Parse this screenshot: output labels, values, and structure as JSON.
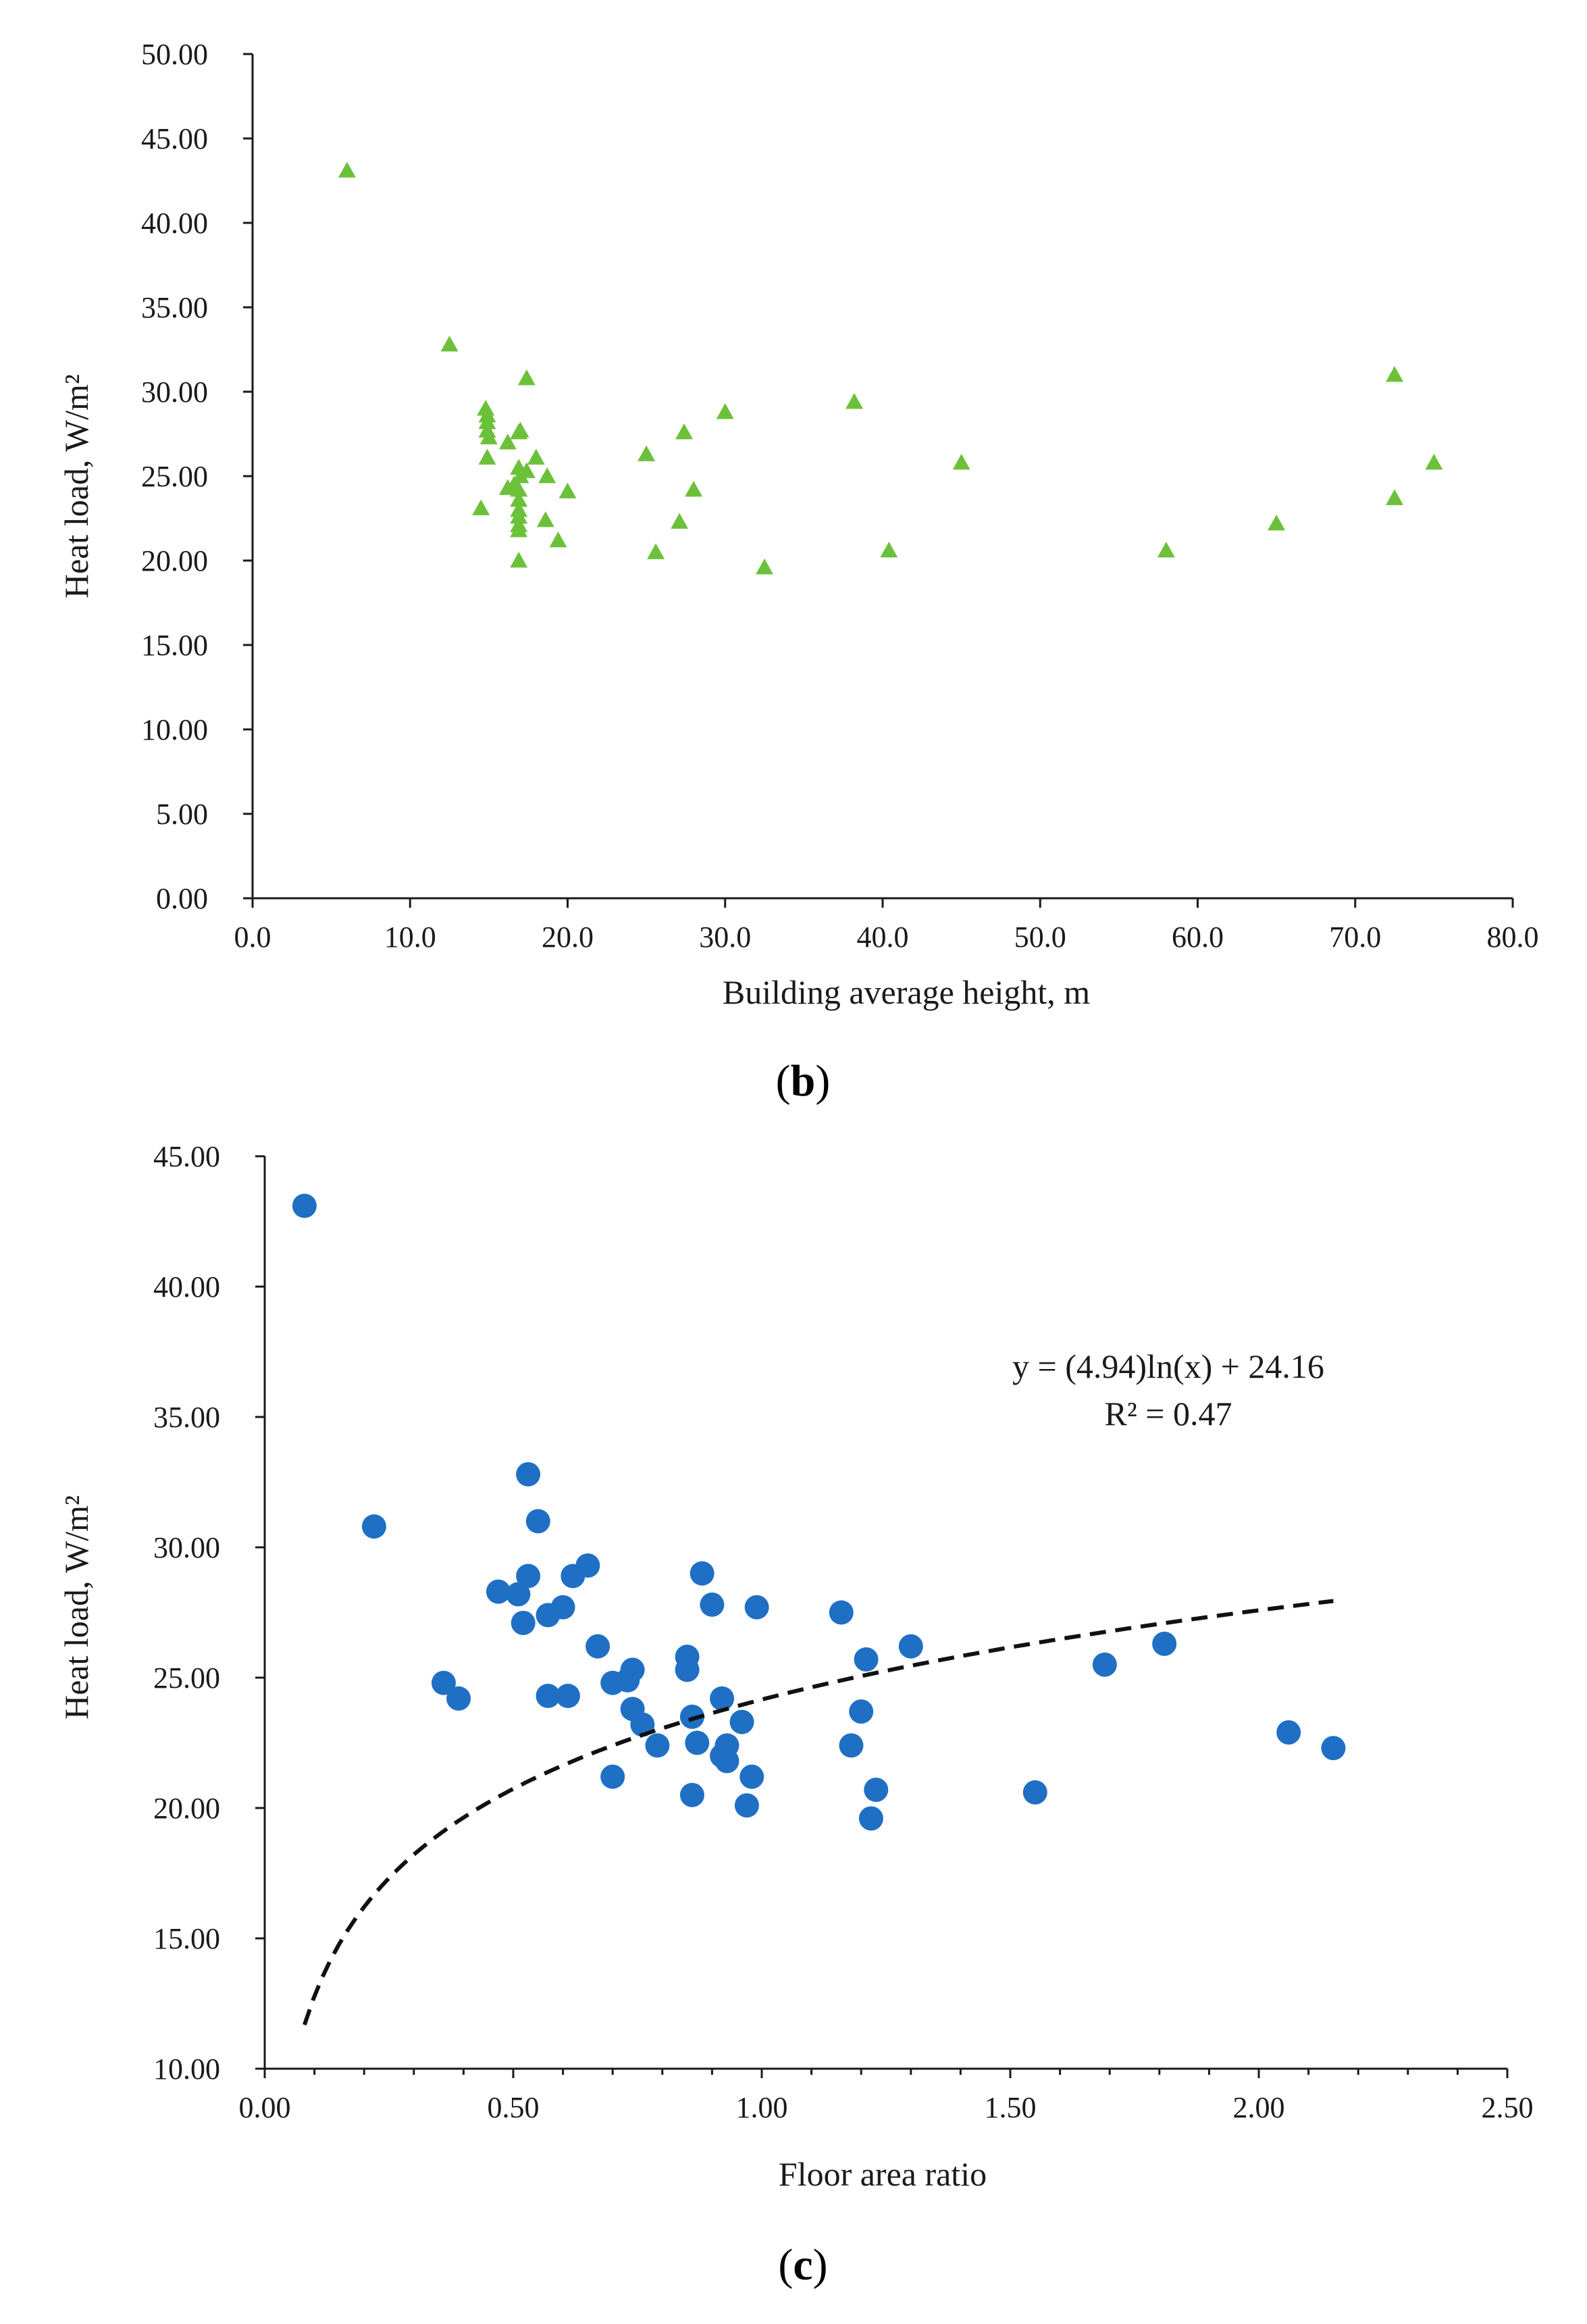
{
  "chart_data": [
    {
      "id": "b",
      "type": "scatter",
      "panel_label": "b",
      "xlabel": "Building average height, m",
      "ylabel": "Heat load, W/m²",
      "xlim": [
        0,
        80
      ],
      "ylim": [
        0,
        50
      ],
      "x_ticks": [
        0,
        10,
        20,
        30,
        40,
        50,
        60,
        70,
        80
      ],
      "x_tick_labels": [
        "0.0",
        "10.0",
        "20.0",
        "30.0",
        "40.0",
        "50.0",
        "60.0",
        "70.0",
        "80.0"
      ],
      "y_ticks": [
        0,
        5,
        10,
        15,
        20,
        25,
        30,
        35,
        40,
        45,
        50
      ],
      "y_tick_labels": [
        "0.00",
        "5.00",
        "10.00",
        "15.00",
        "20.00",
        "25.00",
        "30.00",
        "35.00",
        "40.00",
        "45.00",
        "50.00"
      ],
      "marker": "triangle",
      "marker_color": "#6cc13a",
      "grid": false,
      "points": [
        [
          6.0,
          43.1
        ],
        [
          12.5,
          32.8
        ],
        [
          14.5,
          23.1
        ],
        [
          14.8,
          29.0
        ],
        [
          14.9,
          28.6
        ],
        [
          14.9,
          28.2
        ],
        [
          14.9,
          27.7
        ],
        [
          15.0,
          27.3
        ],
        [
          14.9,
          26.1
        ],
        [
          16.2,
          27.0
        ],
        [
          16.2,
          24.3
        ],
        [
          16.6,
          24.5
        ],
        [
          16.9,
          27.6
        ],
        [
          17.0,
          27.7
        ],
        [
          16.9,
          25.5
        ],
        [
          17.0,
          25.0
        ],
        [
          16.9,
          24.2
        ],
        [
          16.9,
          23.6
        ],
        [
          16.9,
          23.0
        ],
        [
          16.9,
          22.6
        ],
        [
          16.9,
          22.1
        ],
        [
          16.9,
          21.8
        ],
        [
          16.9,
          20.0
        ],
        [
          17.4,
          30.8
        ],
        [
          17.4,
          25.3
        ],
        [
          18.0,
          26.1
        ],
        [
          18.6,
          22.4
        ],
        [
          18.7,
          25.0
        ],
        [
          19.4,
          21.2
        ],
        [
          20.0,
          24.1
        ],
        [
          25.0,
          26.3
        ],
        [
          25.6,
          20.5
        ],
        [
          27.1,
          22.3
        ],
        [
          27.4,
          27.6
        ],
        [
          28.0,
          24.2
        ],
        [
          30.0,
          28.8
        ],
        [
          32.5,
          19.6
        ],
        [
          38.2,
          29.4
        ],
        [
          40.4,
          20.6
        ],
        [
          45.0,
          25.8
        ],
        [
          58.0,
          20.6
        ],
        [
          65.0,
          22.2
        ],
        [
          72.5,
          31.0
        ],
        [
          72.5,
          23.7
        ],
        [
          75.0,
          25.8
        ]
      ]
    },
    {
      "id": "c",
      "type": "scatter",
      "panel_label": "c",
      "xlabel": "Floor area ratio",
      "ylabel": "Heat load, W/m²",
      "xlim": [
        0,
        2.5
      ],
      "ylim": [
        10,
        45
      ],
      "x_ticks": [
        0,
        0.5,
        1.0,
        1.5,
        2.0,
        2.5
      ],
      "x_tick_labels": [
        "0.00",
        "0.50",
        "1.00",
        "1.50",
        "2.00",
        "2.50"
      ],
      "y_ticks": [
        10,
        15,
        20,
        25,
        30,
        35,
        40,
        45
      ],
      "y_tick_labels": [
        "10.00",
        "15.00",
        "20.00",
        "25.00",
        "30.00",
        "35.00",
        "40.00",
        "45.00"
      ],
      "marker": "circle",
      "marker_color": "#1f6fc5",
      "grid": false,
      "trendline": {
        "type": "logarithmic",
        "a": 4.94,
        "b": 24.16,
        "x_range": [
          0.08,
          2.15
        ],
        "equation_label": "y = (4.94)ln(x) + 24.16",
        "r2_label": "R² = 0.47"
      },
      "points": [
        [
          0.08,
          43.1
        ],
        [
          0.22,
          30.8
        ],
        [
          0.36,
          24.8
        ],
        [
          0.39,
          24.2
        ],
        [
          0.47,
          28.3
        ],
        [
          0.51,
          28.2
        ],
        [
          0.52,
          27.1
        ],
        [
          0.53,
          28.9
        ],
        [
          0.53,
          32.8
        ],
        [
          0.55,
          31.0
        ],
        [
          0.57,
          27.4
        ],
        [
          0.57,
          24.3
        ],
        [
          0.6,
          27.7
        ],
        [
          0.61,
          24.3
        ],
        [
          0.62,
          28.9
        ],
        [
          0.65,
          29.3
        ],
        [
          0.67,
          26.2
        ],
        [
          0.7,
          24.8
        ],
        [
          0.7,
          21.2
        ],
        [
          0.73,
          24.9
        ],
        [
          0.74,
          25.3
        ],
        [
          0.74,
          23.8
        ],
        [
          0.76,
          23.2
        ],
        [
          0.79,
          22.4
        ],
        [
          0.85,
          25.8
        ],
        [
          0.85,
          25.3
        ],
        [
          0.86,
          23.5
        ],
        [
          0.86,
          20.5
        ],
        [
          0.87,
          22.5
        ],
        [
          0.88,
          29.0
        ],
        [
          0.9,
          27.8
        ],
        [
          0.92,
          24.2
        ],
        [
          0.92,
          22.0
        ],
        [
          0.93,
          21.8
        ],
        [
          0.93,
          22.4
        ],
        [
          0.96,
          23.3
        ],
        [
          0.97,
          20.1
        ],
        [
          0.98,
          21.2
        ],
        [
          0.99,
          27.7
        ],
        [
          1.16,
          27.5
        ],
        [
          1.18,
          22.4
        ],
        [
          1.2,
          23.7
        ],
        [
          1.21,
          25.7
        ],
        [
          1.22,
          19.6
        ],
        [
          1.23,
          20.7
        ],
        [
          1.3,
          26.2
        ],
        [
          1.55,
          20.6
        ],
        [
          1.69,
          25.5
        ],
        [
          1.81,
          26.3
        ],
        [
          2.06,
          22.9
        ],
        [
          2.15,
          22.3
        ]
      ]
    }
  ]
}
